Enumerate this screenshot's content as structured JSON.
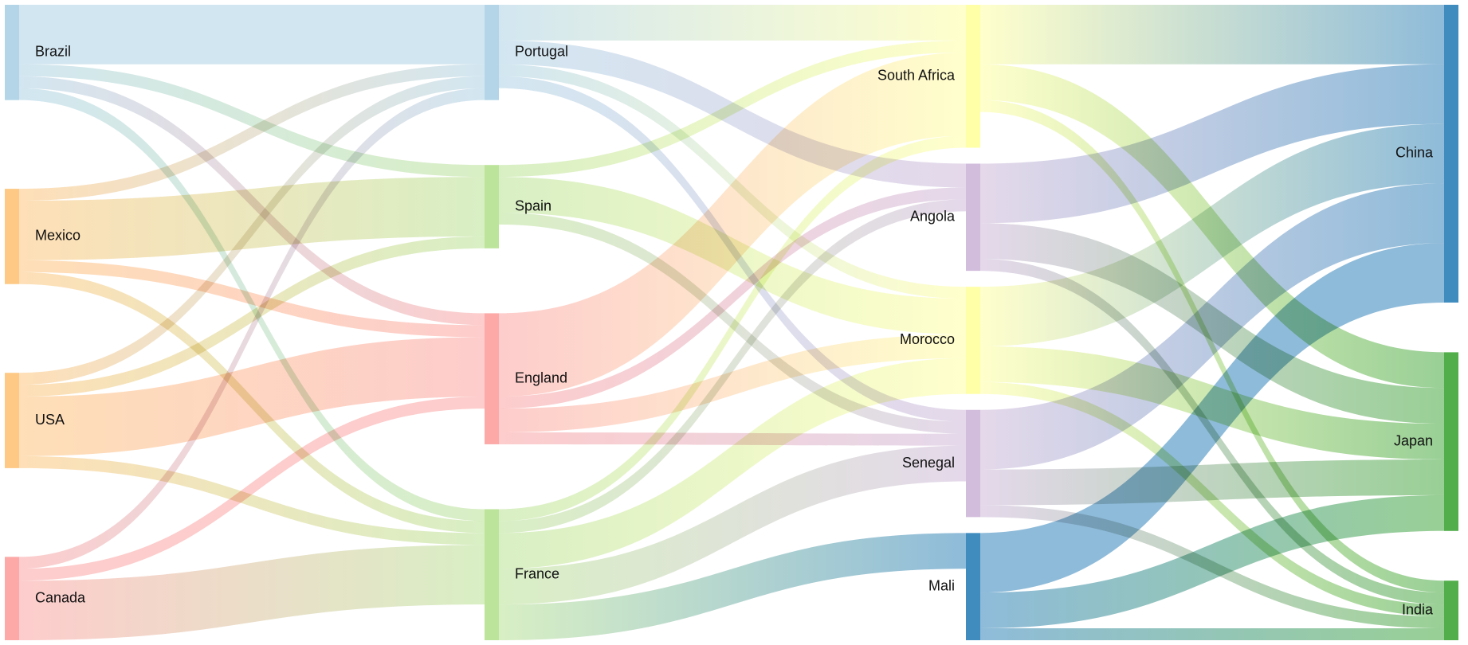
{
  "chart_data": {
    "type": "sankey",
    "title": "",
    "columns": [
      [
        "Brazil",
        "Mexico",
        "USA",
        "Canada"
      ],
      [
        "Portugal",
        "Spain",
        "England",
        "France"
      ],
      [
        "South Africa",
        "Angola",
        "Morocco",
        "Senegal",
        "Mali"
      ],
      [
        "China",
        "Japan",
        "India"
      ]
    ],
    "nodes": [
      {
        "name": "Brazil",
        "color": "#a6cee3"
      },
      {
        "name": "Mexico",
        "color": "#fdbf6f"
      },
      {
        "name": "USA",
        "color": "#fdbf6f"
      },
      {
        "name": "Canada",
        "color": "#fb9a99"
      },
      {
        "name": "Portugal",
        "color": "#a6cee3"
      },
      {
        "name": "Spain",
        "color": "#b2df8a"
      },
      {
        "name": "England",
        "color": "#fb9a99"
      },
      {
        "name": "France",
        "color": "#b2df8a"
      },
      {
        "name": "South Africa",
        "color": "#ffff99"
      },
      {
        "name": "Angola",
        "color": "#cab2d6"
      },
      {
        "name": "Morocco",
        "color": "#ffff99"
      },
      {
        "name": "Senegal",
        "color": "#cab2d6"
      },
      {
        "name": "Mali",
        "color": "#1f78b4"
      },
      {
        "name": "China",
        "color": "#1f78b4"
      },
      {
        "name": "Japan",
        "color": "#33a02c"
      },
      {
        "name": "India",
        "color": "#33a02c"
      }
    ],
    "links": [
      {
        "source": "Brazil",
        "target": "Portugal",
        "value": 5
      },
      {
        "source": "Brazil",
        "target": "France",
        "value": 1
      },
      {
        "source": "Brazil",
        "target": "Spain",
        "value": 1
      },
      {
        "source": "Brazil",
        "target": "England",
        "value": 1
      },
      {
        "source": "Canada",
        "target": "Portugal",
        "value": 1
      },
      {
        "source": "Canada",
        "target": "France",
        "value": 5
      },
      {
        "source": "Canada",
        "target": "England",
        "value": 1
      },
      {
        "source": "Mexico",
        "target": "Portugal",
        "value": 1
      },
      {
        "source": "Mexico",
        "target": "France",
        "value": 1
      },
      {
        "source": "Mexico",
        "target": "Spain",
        "value": 5
      },
      {
        "source": "Mexico",
        "target": "England",
        "value": 1
      },
      {
        "source": "USA",
        "target": "Portugal",
        "value": 1
      },
      {
        "source": "USA",
        "target": "France",
        "value": 1
      },
      {
        "source": "USA",
        "target": "Spain",
        "value": 1
      },
      {
        "source": "USA",
        "target": "England",
        "value": 5
      },
      {
        "source": "Portugal",
        "target": "Angola",
        "value": 2
      },
      {
        "source": "Portugal",
        "target": "Senegal",
        "value": 1
      },
      {
        "source": "Portugal",
        "target": "Morocco",
        "value": 1
      },
      {
        "source": "Portugal",
        "target": "South Africa",
        "value": 3
      },
      {
        "source": "France",
        "target": "Angola",
        "value": 1
      },
      {
        "source": "France",
        "target": "Senegal",
        "value": 3
      },
      {
        "source": "France",
        "target": "Mali",
        "value": 3
      },
      {
        "source": "France",
        "target": "Morocco",
        "value": 3
      },
      {
        "source": "France",
        "target": "South Africa",
        "value": 1
      },
      {
        "source": "Spain",
        "target": "Senegal",
        "value": 1
      },
      {
        "source": "Spain",
        "target": "Morocco",
        "value": 3
      },
      {
        "source": "Spain",
        "target": "South Africa",
        "value": 1
      },
      {
        "source": "England",
        "target": "Angola",
        "value": 1
      },
      {
        "source": "England",
        "target": "Senegal",
        "value": 1
      },
      {
        "source": "England",
        "target": "Morocco",
        "value": 2
      },
      {
        "source": "England",
        "target": "South Africa",
        "value": 7
      },
      {
        "source": "South Africa",
        "target": "China",
        "value": 5
      },
      {
        "source": "South Africa",
        "target": "India",
        "value": 1
      },
      {
        "source": "South Africa",
        "target": "Japan",
        "value": 3
      },
      {
        "source": "Angola",
        "target": "China",
        "value": 5
      },
      {
        "source": "Angola",
        "target": "India",
        "value": 1
      },
      {
        "source": "Angola",
        "target": "Japan",
        "value": 3
      },
      {
        "source": "Senegal",
        "target": "China",
        "value": 5
      },
      {
        "source": "Senegal",
        "target": "India",
        "value": 1
      },
      {
        "source": "Senegal",
        "target": "Japan",
        "value": 3
      },
      {
        "source": "Mali",
        "target": "China",
        "value": 5
      },
      {
        "source": "Mali",
        "target": "India",
        "value": 1
      },
      {
        "source": "Mali",
        "target": "Japan",
        "value": 3
      },
      {
        "source": "Morocco",
        "target": "China",
        "value": 5
      },
      {
        "source": "Morocco",
        "target": "India",
        "value": 1
      },
      {
        "source": "Morocco",
        "target": "Japan",
        "value": 3
      }
    ]
  }
}
